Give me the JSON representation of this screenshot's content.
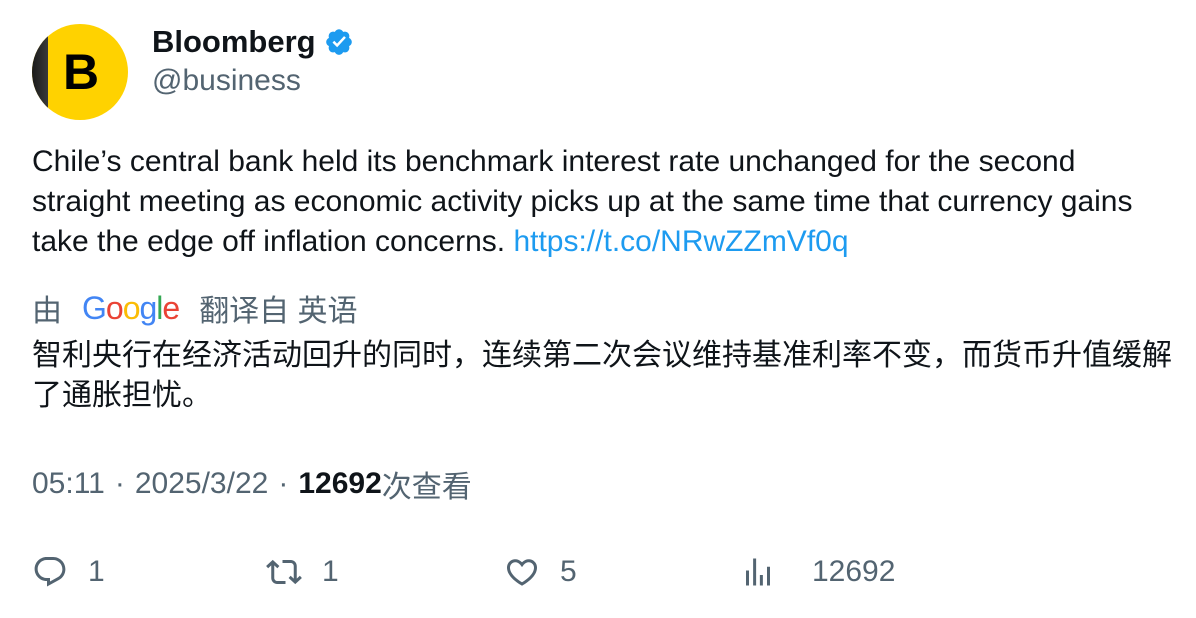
{
  "author": {
    "avatar_letter": "B",
    "display_name": "Bloomberg",
    "handle": "@business",
    "verified": true
  },
  "tweet": {
    "text": "Chile’s central bank held its benchmark interest rate unchanged for the second straight meeting as economic activity picks up at the same time that currency gains take the edge off inflation concerns. ",
    "link": "https://t.co/NRwZZmVf0q"
  },
  "translation": {
    "by_label": "由",
    "provider_letters": [
      "G",
      "o",
      "o",
      "g",
      "l",
      "e"
    ],
    "translated_from_label": "翻译自 英语",
    "text": "智利央行在经济活动回升的同时，连续第二次会议维持基准利率不变，而货币升值缓解了通胀担忧。"
  },
  "meta": {
    "time": "05:11",
    "separator": "·",
    "date": "2025/3/22",
    "views_count": "12692",
    "views_label": "次查看"
  },
  "actions": {
    "reply_count": "1",
    "retweet_count": "1",
    "like_count": "5",
    "views_count": "12692"
  },
  "colors": {
    "brand_yellow": "#ffd200",
    "verified_blue": "#1d9bf0",
    "link_blue": "#1d9bf0",
    "secondary_text": "#536471"
  }
}
